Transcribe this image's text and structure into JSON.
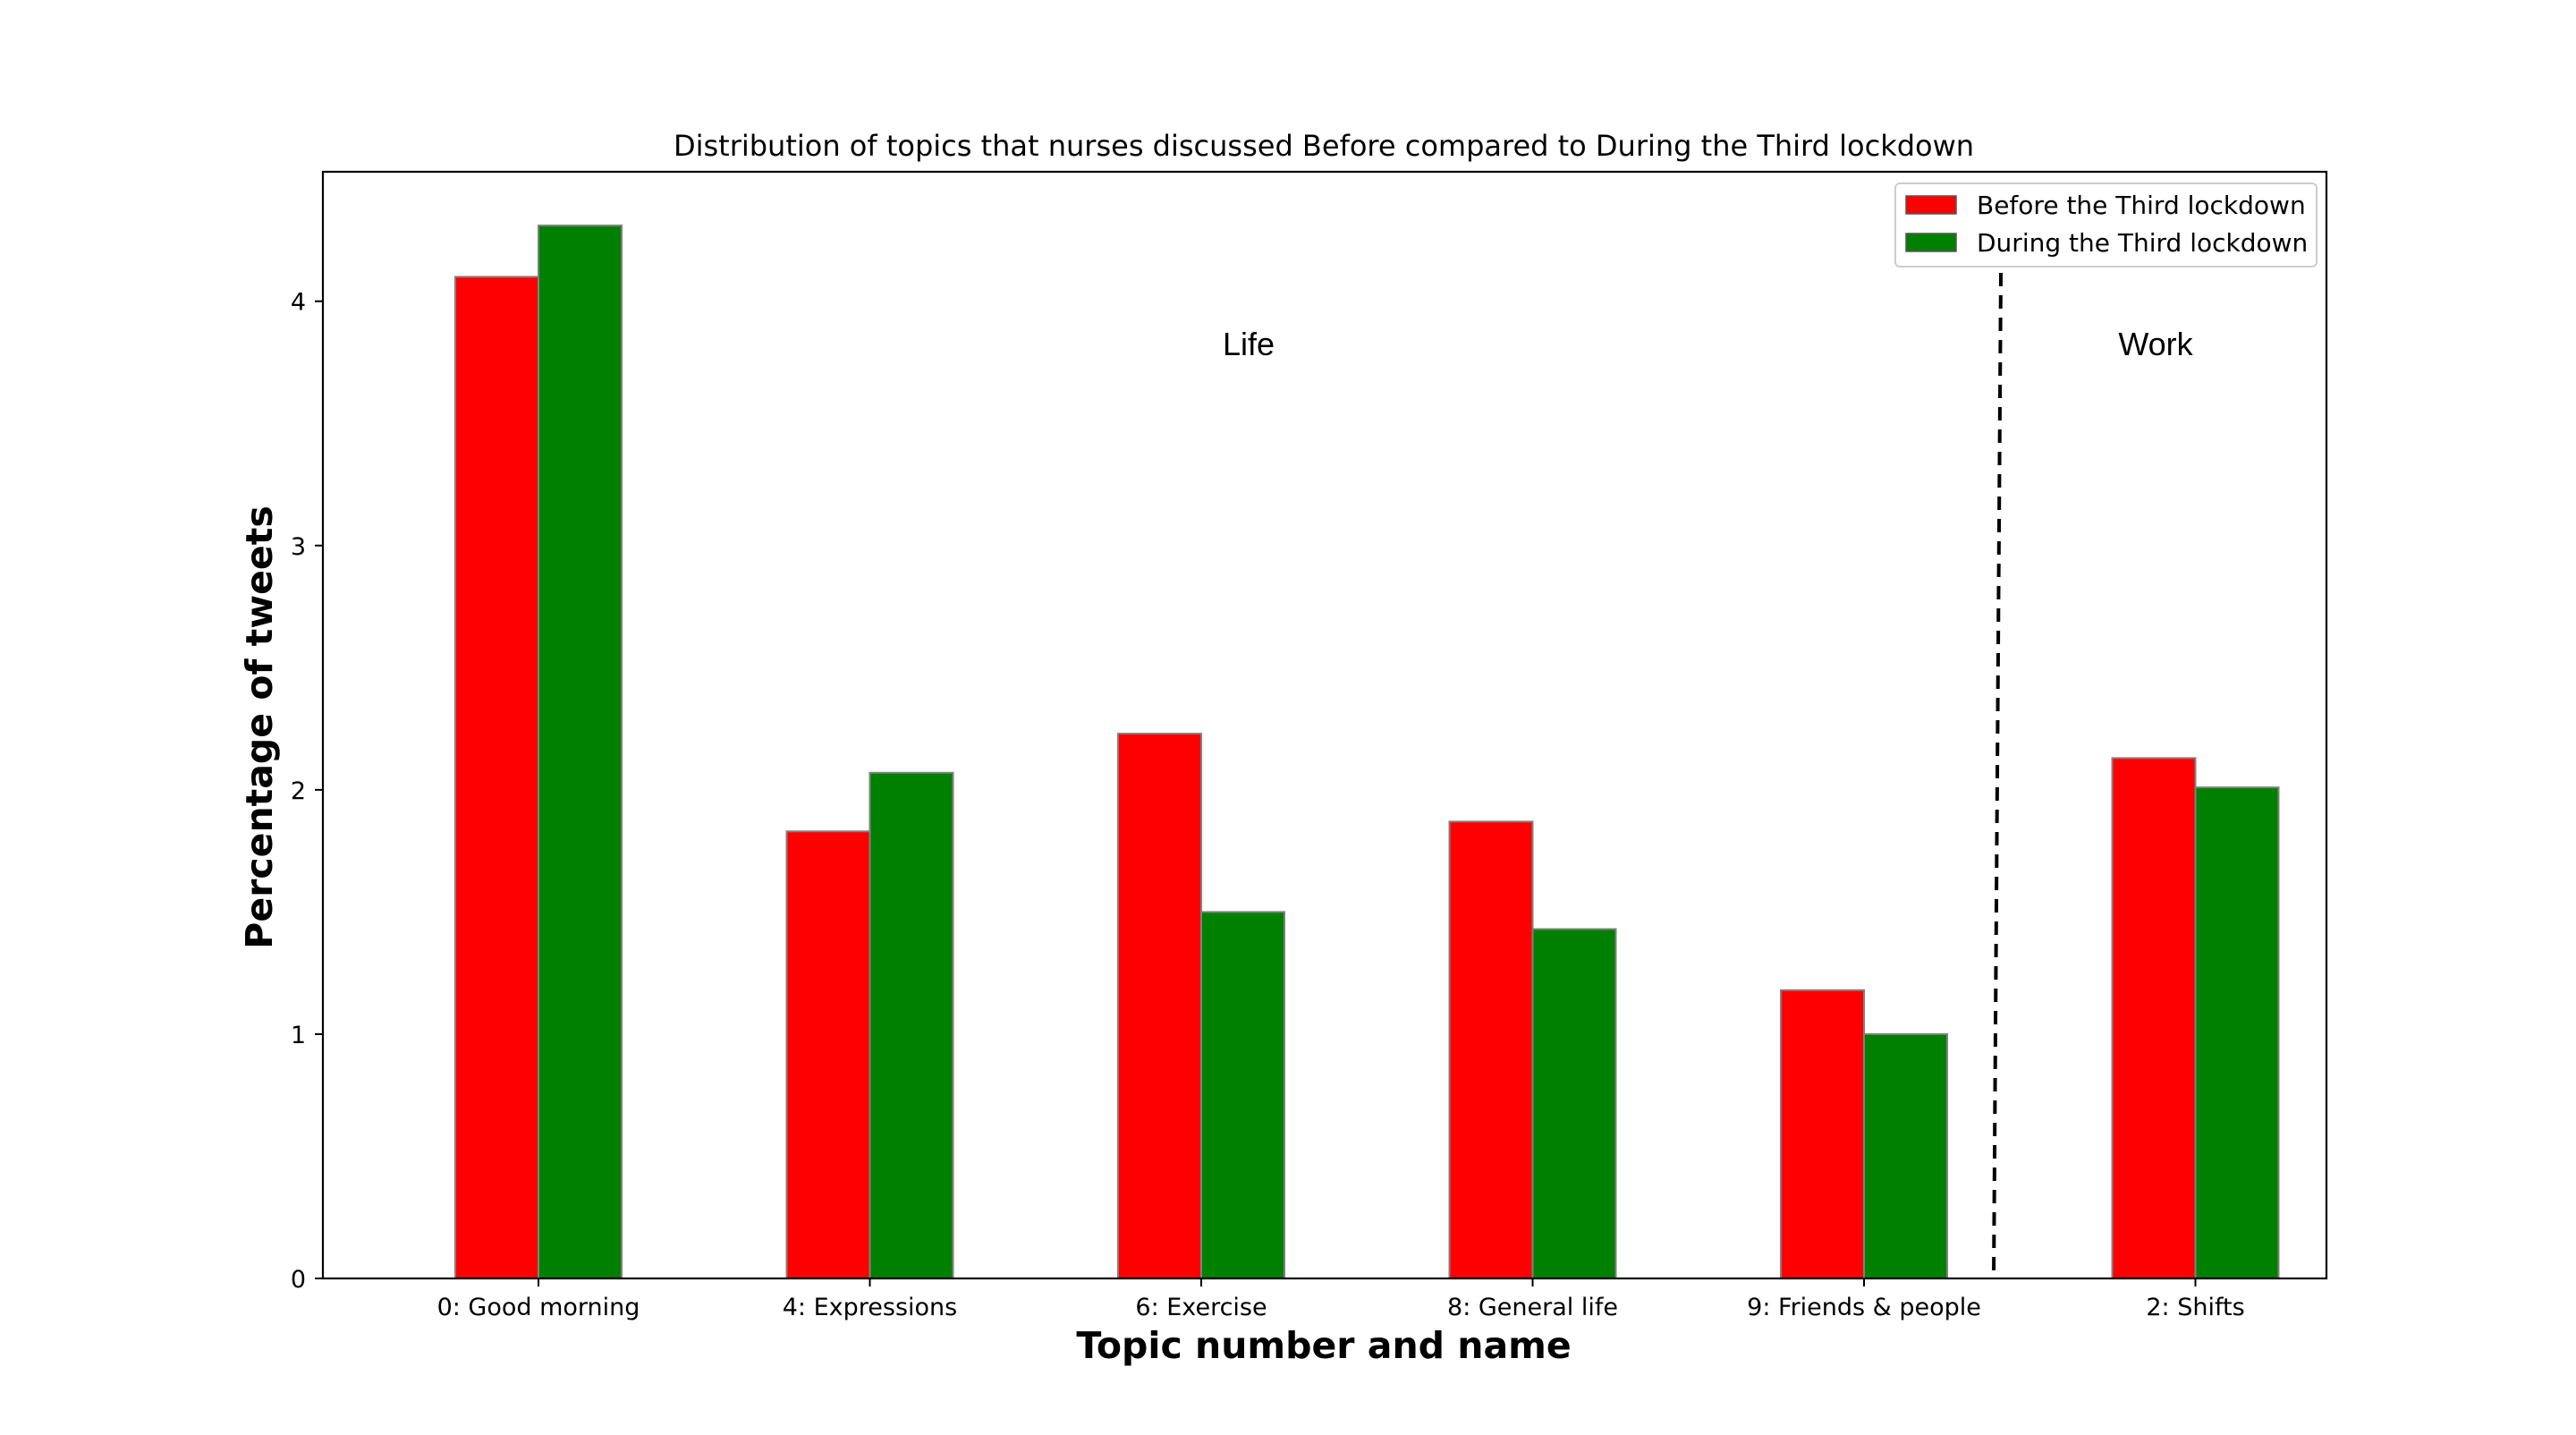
{
  "chart_data": {
    "type": "bar",
    "title": "Distribution of topics that nurses discussed Before compared to During the Third lockdown",
    "xlabel": "Topic number and name",
    "ylabel": "Percentage of tweets",
    "categories": [
      "0: Good morning",
      "4: Expressions",
      "6: Exercise",
      "8: General life",
      "9: Friends & people",
      "2: Shifts"
    ],
    "series": [
      {
        "name": "Before the Third lockdown",
        "color": "#ff0000",
        "values": [
          4.1,
          1.83,
          2.23,
          1.87,
          1.18,
          2.13
        ]
      },
      {
        "name": "During the Third lockdown",
        "color": "#008000",
        "values": [
          4.31,
          2.07,
          1.5,
          1.43,
          1.0,
          2.01
        ]
      }
    ],
    "yticks": [
      0,
      1,
      2,
      3,
      4
    ],
    "ylim": [
      0,
      4.53
    ],
    "grid": false,
    "legend_location": "top-right",
    "regions": [
      {
        "label": "Life",
        "categories": [
          "0: Good morning",
          "4: Expressions",
          "6: Exercise",
          "8: General life",
          "9: Friends & people"
        ]
      },
      {
        "label": "Work",
        "categories": [
          "2: Shifts"
        ]
      }
    ],
    "divider": "dashed line between 9: Friends & people and 2: Shifts"
  }
}
